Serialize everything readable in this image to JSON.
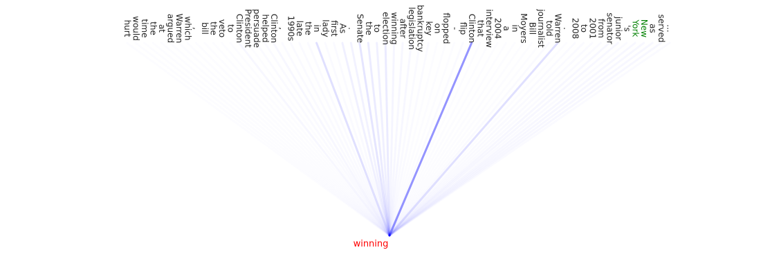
{
  "target": {
    "text": "winning",
    "color": "#ff0000"
  },
  "line_color": "#0000ff",
  "tokens": [
    {
      "text": "...",
      "weight": 0.02
    },
    {
      "text": "served",
      "weight": 0.03
    },
    {
      "text": "as",
      "weight": 0.03
    },
    {
      "text": "New",
      "weight": 0.03,
      "color": "#008000"
    },
    {
      "text": "York",
      "weight": 0.03,
      "color": "#008000"
    },
    {
      "text": "'s",
      "weight": 0.02
    },
    {
      "text": "junior",
      "weight": 0.03
    },
    {
      "text": "senator",
      "weight": 0.03
    },
    {
      "text": "from",
      "weight": 0.02
    },
    {
      "text": "2001",
      "weight": 0.02
    },
    {
      "text": "to",
      "weight": 0.02
    },
    {
      "text": "2008",
      "weight": 0.02
    },
    {
      "text": ".",
      "weight": 0.01
    },
    {
      "text": "Warren",
      "weight": 0.12
    },
    {
      "text": "told",
      "weight": 0.02
    },
    {
      "text": "journalist",
      "weight": 0.01
    },
    {
      "text": "Bill",
      "weight": 0.01
    },
    {
      "text": "Moyers",
      "weight": 0.01
    },
    {
      "text": "in",
      "weight": 0.01
    },
    {
      "text": "a",
      "weight": 0.01
    },
    {
      "text": "2004",
      "weight": 0.01
    },
    {
      "text": "interview",
      "weight": 0.01
    },
    {
      "text": "that",
      "weight": 0.01
    },
    {
      "text": "Clinton",
      "weight": 0.42
    },
    {
      "text": "flip",
      "weight": 0.02
    },
    {
      "text": "-",
      "weight": 0.01
    },
    {
      "text": "flopped",
      "weight": 0.01
    },
    {
      "text": "on",
      "weight": 0.01
    },
    {
      "text": "key",
      "weight": 0.02
    },
    {
      "text": "bankruptcy",
      "weight": 0.02
    },
    {
      "text": "legislation",
      "weight": 0.03
    },
    {
      "text": "after",
      "weight": 0.03
    },
    {
      "text": "winning",
      "weight": 0.04
    },
    {
      "text": "election",
      "weight": 0.08
    },
    {
      "text": "to",
      "weight": 0.06
    },
    {
      "text": "the",
      "weight": 0.08
    },
    {
      "text": "Senate",
      "weight": 0.1
    },
    {
      "text": ".",
      "weight": 0.05
    },
    {
      "text": "As",
      "weight": 0.06
    },
    {
      "text": "first",
      "weight": 0.02
    },
    {
      "text": "lady",
      "weight": 0.02
    },
    {
      "text": "in",
      "weight": 0.12
    },
    {
      "text": "the",
      "weight": 0.02
    },
    {
      "text": "late",
      "weight": 0.02
    },
    {
      "text": "1990s",
      "weight": 0.02
    },
    {
      "text": ",",
      "weight": 0.02
    },
    {
      "text": "Clinton",
      "weight": 0.03
    },
    {
      "text": "helped",
      "weight": 0.02
    },
    {
      "text": "persuade",
      "weight": 0.02
    },
    {
      "text": "President",
      "weight": 0.01
    },
    {
      "text": "Clinton",
      "weight": 0.03
    },
    {
      "text": "to",
      "weight": 0.01
    },
    {
      "text": "veto",
      "weight": 0.01
    },
    {
      "text": "the",
      "weight": 0.01
    },
    {
      "text": "bill",
      "weight": 0.01
    },
    {
      "text": ",",
      "weight": 0.01
    },
    {
      "text": "which",
      "weight": 0.01
    },
    {
      "text": "Warren",
      "weight": 0.01
    },
    {
      "text": "argued",
      "weight": 0.01
    },
    {
      "text": "at",
      "weight": 0.01
    },
    {
      "text": "the",
      "weight": 0.01
    },
    {
      "text": "time",
      "weight": 0.01
    },
    {
      "text": "would",
      "weight": 0.01
    },
    {
      "text": "hurt",
      "weight": 0.01
    }
  ]
}
